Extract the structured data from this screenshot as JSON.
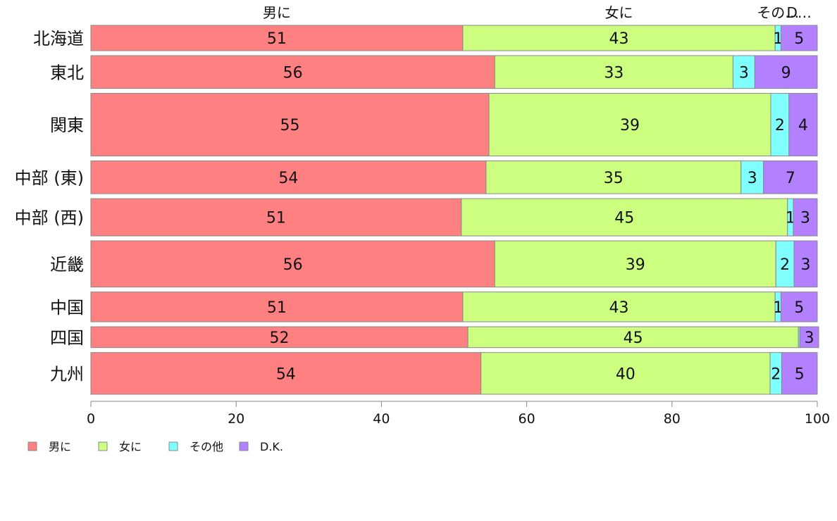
{
  "chart_data": {
    "type": "bar",
    "orientation": "horizontal",
    "stacked": true,
    "title": "",
    "xlabel": "",
    "ylabel": "",
    "xlim": [
      0,
      100
    ],
    "x_ticks": [
      "0",
      "20",
      "40",
      "60",
      "80",
      "100"
    ],
    "grid": false,
    "legend_position": "bottom-left",
    "categories": [
      "北海道",
      "東北",
      "関東",
      "中部 (東)",
      "中部 (西)",
      "近畿",
      "中国",
      "四国",
      "九州"
    ],
    "category_weights": [
      0.85,
      1.1,
      2.1,
      1.1,
      1.25,
      1.55,
      1.0,
      0.7,
      1.4
    ],
    "series": [
      {
        "name": "男に",
        "top_label": "男に",
        "color": "#ff8080",
        "values": [
          51.2,
          55.6,
          54.8,
          54.4,
          51.0,
          55.6,
          51.2,
          51.9,
          53.7
        ],
        "labels": [
          "51",
          "56",
          "55",
          "54",
          "51",
          "56",
          "51",
          "52",
          "54"
        ]
      },
      {
        "name": "女に",
        "top_label": "女に",
        "color": "#ccff80",
        "values": [
          43.0,
          32.8,
          38.8,
          35.1,
          44.9,
          38.7,
          43.0,
          45.5,
          39.8
        ],
        "labels": [
          "43",
          "33",
          "39",
          "35",
          "45",
          "39",
          "43",
          "45",
          "40"
        ]
      },
      {
        "name": "その他",
        "top_label": "その…",
        "color": "#80ffff",
        "values": [
          0.8,
          3.0,
          2.5,
          3.1,
          0.8,
          2.5,
          0.8,
          0.2,
          1.6
        ],
        "labels": [
          "1",
          "3",
          "2",
          "3",
          "1",
          "2",
          "1",
          "",
          "2"
        ]
      },
      {
        "name": "D.K.",
        "top_label": "D…",
        "color": "#b380ff",
        "values": [
          5.0,
          8.6,
          3.9,
          7.4,
          3.3,
          3.2,
          5.0,
          2.6,
          4.9
        ],
        "labels": [
          "5",
          "9",
          "4",
          "7",
          "3",
          "3",
          "5",
          "3",
          "5"
        ]
      }
    ]
  }
}
